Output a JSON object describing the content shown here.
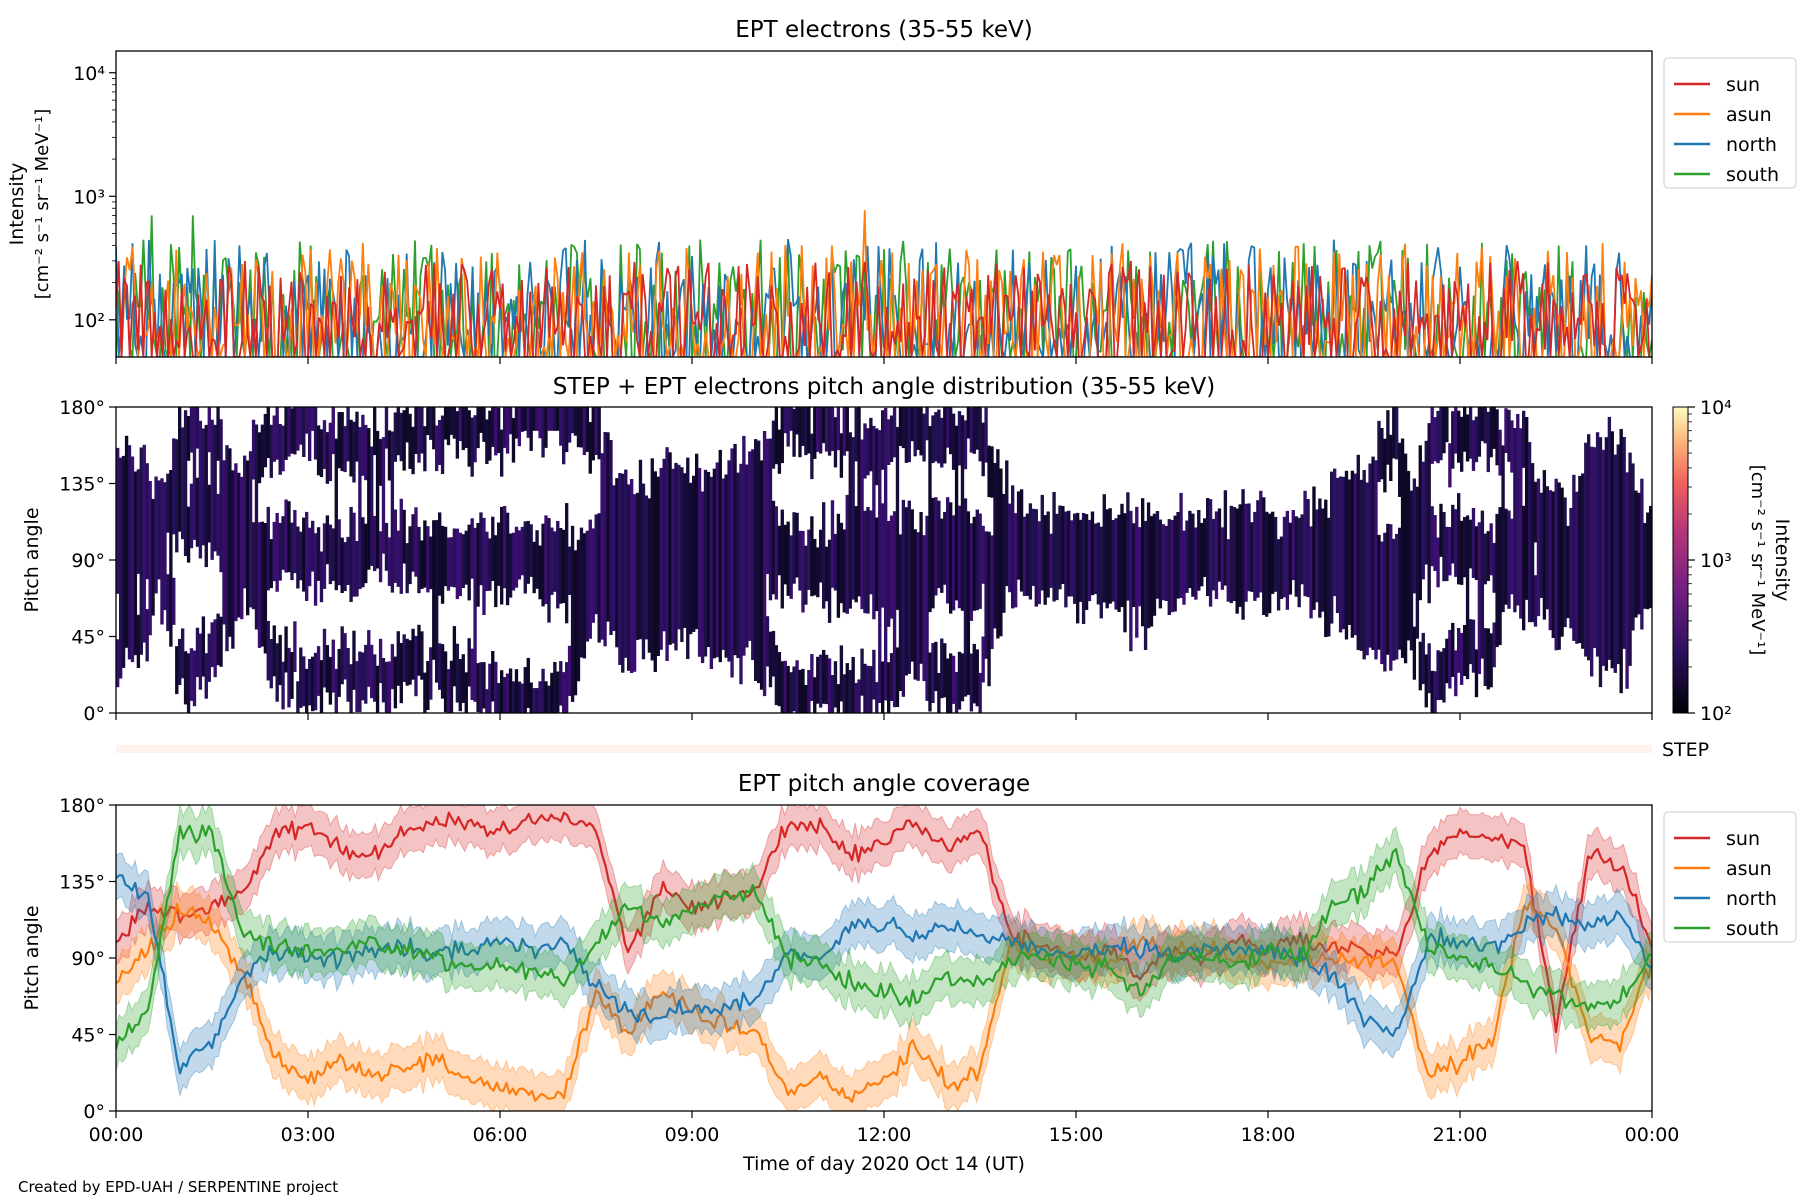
{
  "footer": "Created by EPD-UAH / SERPENTINE project",
  "xaxis": {
    "label": "Time of day 2020 Oct 14 (UT)",
    "ticks": [
      "00:00",
      "03:00",
      "06:00",
      "09:00",
      "12:00",
      "15:00",
      "18:00",
      "21:00",
      "00:00"
    ]
  },
  "colors": {
    "sun": "#d62728",
    "asun": "#ff7f0e",
    "north": "#1f77b4",
    "south": "#2ca02c"
  },
  "chart_data": [
    {
      "type": "line",
      "title": "EPT electrons (35-55 keV)",
      "ylabel_line1": "Intensity",
      "ylabel_line2": "[cm⁻² s⁻¹ sr⁻¹ MeV⁻¹]",
      "yscale": "log",
      "ylim": [
        50,
        15000
      ],
      "y_ticks": [
        "10²",
        "10³",
        "10⁴"
      ],
      "xlim_hours": [
        0,
        24
      ],
      "legend_position": "outside-right-top",
      "series": [
        {
          "name": "south",
          "color": "#2ca02c",
          "typical_range": [
            55,
            450
          ]
        },
        {
          "name": "north",
          "color": "#1f77b4",
          "typical_range": [
            55,
            450
          ]
        },
        {
          "name": "asun",
          "color": "#ff7f0e",
          "typical_range": [
            60,
            420
          ]
        },
        {
          "name": "sun",
          "color": "#d62728",
          "typical_range": [
            55,
            300
          ]
        }
      ],
      "notable_peaks": [
        {
          "series": "south",
          "x_hours": 0.55,
          "y": 700
        },
        {
          "series": "south",
          "x_hours": 1.2,
          "y": 700
        },
        {
          "series": "asun",
          "x_hours": 11.7,
          "y": 770
        }
      ]
    },
    {
      "type": "heatmap",
      "title": "STEP + EPT electrons pitch angle distribution (35-55 keV)",
      "ylabel": "Pitch angle",
      "ylim": [
        0,
        180
      ],
      "y_ticks": [
        "0°",
        "45°",
        "90°",
        "135°",
        "180°"
      ],
      "xlim_hours": [
        0,
        24
      ],
      "colorbar": {
        "label_line1": "Intensity",
        "label_line2": "[cm⁻² s⁻¹ sr⁻¹ MeV⁻¹]",
        "scale": "log",
        "range": [
          100,
          10000
        ],
        "ticks": [
          "10²",
          "10³",
          "10⁴"
        ]
      },
      "step_strip_label": "STEP"
    },
    {
      "type": "line",
      "title": "EPT pitch angle coverage",
      "ylabel": "Pitch angle",
      "ylim": [
        0,
        180
      ],
      "y_ticks": [
        "0°",
        "45°",
        "90°",
        "135°",
        "180°"
      ],
      "xlim_hours": [
        0,
        24
      ],
      "legend_position": "outside-right-top",
      "x_hours": [
        0,
        0.5,
        1,
        1.5,
        2,
        2.5,
        3,
        3.5,
        4,
        4.5,
        5,
        5.5,
        6,
        6.5,
        7,
        7.5,
        8,
        8.5,
        9,
        9.5,
        10,
        10.5,
        11,
        11.5,
        12,
        12.5,
        13,
        13.5,
        14,
        14.5,
        15,
        15.5,
        16,
        16.5,
        17,
        17.5,
        18,
        18.5,
        19,
        19.5,
        20,
        20.5,
        21,
        21.5,
        22,
        22.5,
        23,
        23.5,
        24
      ],
      "series": [
        {
          "name": "sun",
          "color": "#d62728",
          "values": [
            100,
            120,
            115,
            120,
            130,
            165,
            168,
            155,
            150,
            165,
            170,
            168,
            165,
            172,
            175,
            165,
            95,
            130,
            120,
            125,
            130,
            170,
            168,
            150,
            160,
            170,
            155,
            165,
            100,
            100,
            90,
            95,
            80,
            95,
            90,
            100,
            95,
            100,
            95,
            95,
            90,
            150,
            165,
            160,
            155,
            50,
            150,
            145,
            95
          ]
        },
        {
          "name": "asun",
          "color": "#ff7f0e",
          "values": [
            75,
            95,
            120,
            110,
            80,
            30,
            20,
            30,
            22,
            25,
            30,
            20,
            12,
            8,
            10,
            70,
            45,
            70,
            60,
            50,
            45,
            10,
            20,
            8,
            20,
            40,
            15,
            25,
            100,
            90,
            95,
            85,
            100,
            95,
            95,
            90,
            85,
            90,
            90,
            85,
            90,
            20,
            30,
            40,
            120,
            110,
            45,
            40,
            90
          ]
        },
        {
          "name": "north",
          "color": "#1f77b4",
          "values": [
            140,
            125,
            25,
            40,
            80,
            95,
            90,
            90,
            95,
            95,
            92,
            95,
            100,
            95,
            100,
            75,
            60,
            55,
            60,
            60,
            65,
            95,
            90,
            110,
            110,
            100,
            110,
            100,
            100,
            95,
            90,
            95,
            95,
            90,
            95,
            95,
            95,
            90,
            80,
            55,
            45,
            100,
            100,
            95,
            110,
            115,
            110,
            115,
            85
          ]
        },
        {
          "name": "south",
          "color": "#2ca02c",
          "values": [
            40,
            60,
            165,
            160,
            105,
            95,
            95,
            95,
            100,
            95,
            90,
            85,
            85,
            85,
            75,
            100,
            120,
            110,
            120,
            125,
            130,
            90,
            85,
            75,
            70,
            65,
            80,
            75,
            90,
            90,
            85,
            85,
            70,
            90,
            90,
            85,
            95,
            90,
            120,
            130,
            155,
            95,
            90,
            85,
            75,
            70,
            60,
            65,
            90
          ]
        }
      ]
    }
  ]
}
